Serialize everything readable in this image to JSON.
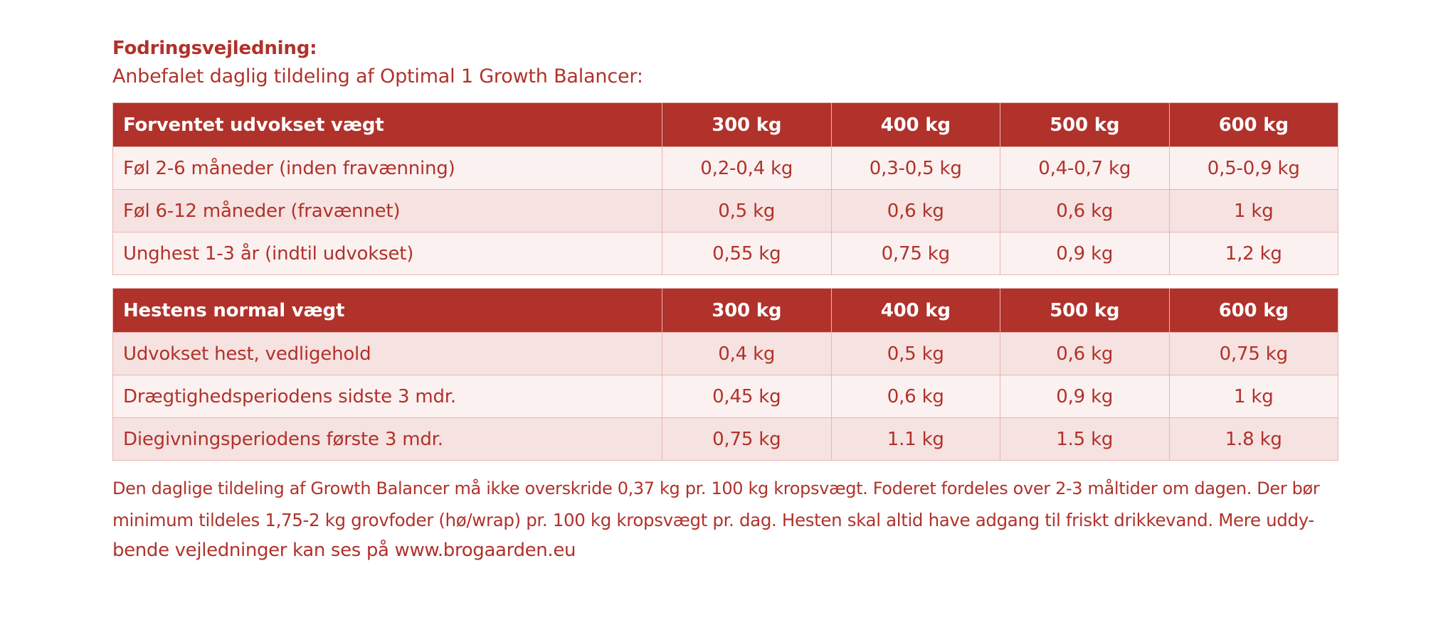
{
  "heading": "Fodringsvejledning:",
  "subheading": "Anbefalet daglig tildeling af Optimal 1 Growth Balancer:",
  "table1": {
    "header": [
      "Forventet udvokset vægt",
      "300 kg",
      "400 kg",
      "500 kg",
      "600 kg"
    ],
    "rows": [
      [
        "Føl 2-6 måneder (inden fravænning)",
        "0,2-0,4 kg",
        "0,3-0,5 kg",
        "0,4-0,7 kg",
        "0,5-0,9 kg"
      ],
      [
        "Føl 6-12 måneder (fravænnet)",
        "0,5 kg",
        "0,6 kg",
        "0,6 kg",
        "1 kg"
      ],
      [
        "Unghest 1-3 år (indtil udvokset)",
        "0,55 kg",
        "0,75 kg",
        "0,9 kg",
        "1,2 kg"
      ]
    ]
  },
  "table2": {
    "header": [
      "Hestens normal vægt",
      "300 kg",
      "400 kg",
      "500 kg",
      "600 kg"
    ],
    "rows": [
      [
        "Udvokset hest, vedligehold",
        "0,4 kg",
        "0,5 kg",
        "0,6 kg",
        "0,75 kg"
      ],
      [
        "Drægtighedsperiodens sidste 3 mdr.",
        "0,45 kg",
        "0,6 kg",
        "0,9 kg",
        "1 kg"
      ],
      [
        "Diegivningsperiodens første 3 mdr.",
        "0,75 kg",
        "1.1 kg",
        "1.5 kg",
        "1.8 kg"
      ]
    ]
  },
  "note": {
    "lines": [
      "Den daglige tildeling af Growth Balancer må ikke overskride 0,37 kg pr. 100 kg kropsvægt. Foderet fordeles over 2-3 måltider om dagen. Der bør",
      "minimum tildeles 1,75-2 kg grovfoder (hø/wrap) pr. 100 kg kropsvægt pr. dag. Hesten skal altid have adgang til friskt drikkevand. Mere uddy-",
      "bende vejledninger kan ses på www.brogaarden.eu"
    ]
  },
  "colors": {
    "accent": "#b0322b",
    "row_light": "#fbf1f0",
    "row_dark": "#f6e2e0",
    "border": "#e7b7b2"
  }
}
